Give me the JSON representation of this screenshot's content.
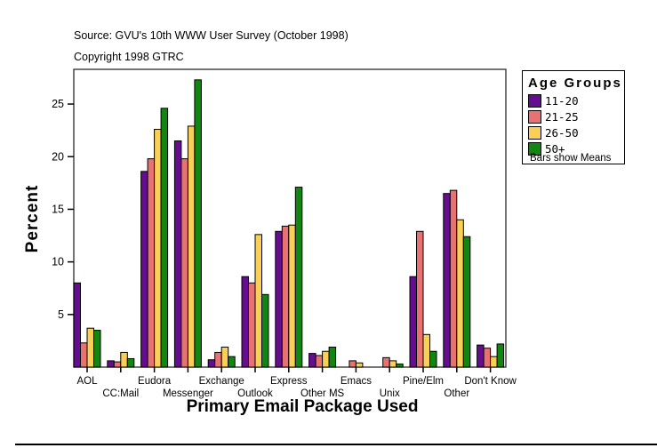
{
  "header": {
    "source_line": "Source: GVU's 10th WWW User Survey (October 1998)",
    "copyright_line": "Copyright 1998 GTRC"
  },
  "chart_data": {
    "type": "bar",
    "title": "",
    "xlabel": "Primary Email Package Used",
    "ylabel": "Percent",
    "categories": [
      "AOL",
      "CC:Mail",
      "Eudora",
      "Messenger",
      "Exchange",
      "Outlook",
      "Express",
      "Other MS",
      "Emacs",
      "Unix",
      "Pine/Elm",
      "Other",
      "Don't Know"
    ],
    "series": [
      {
        "name": "11-20",
        "color": "#660C91",
        "values": [
          8.0,
          0.6,
          18.6,
          21.5,
          0.7,
          8.6,
          12.9,
          1.3,
          0,
          0,
          8.6,
          16.5,
          2.1
        ]
      },
      {
        "name": "21-25",
        "color": "#E87171",
        "values": [
          2.3,
          0.5,
          19.8,
          19.8,
          1.4,
          8.0,
          13.4,
          1.1,
          0.6,
          0.9,
          12.9,
          16.8,
          1.8
        ]
      },
      {
        "name": "26-50",
        "color": "#F9CF58",
        "values": [
          3.7,
          1.4,
          22.6,
          22.9,
          1.9,
          12.6,
          13.5,
          1.5,
          0.4,
          0.6,
          3.1,
          14.0,
          1.0
        ]
      },
      {
        "name": "50+",
        "color": "#118611",
        "values": [
          3.5,
          0.8,
          24.6,
          27.3,
          1.0,
          6.9,
          17.1,
          1.9,
          0,
          0.3,
          1.5,
          12.4,
          2.2
        ]
      }
    ],
    "yticks": [
      5,
      10,
      15,
      20,
      25
    ],
    "ylim": [
      0,
      28.3
    ],
    "grid": false,
    "legend": {
      "title": "Age Groups",
      "note": "Bars show Means",
      "position": "right"
    }
  }
}
